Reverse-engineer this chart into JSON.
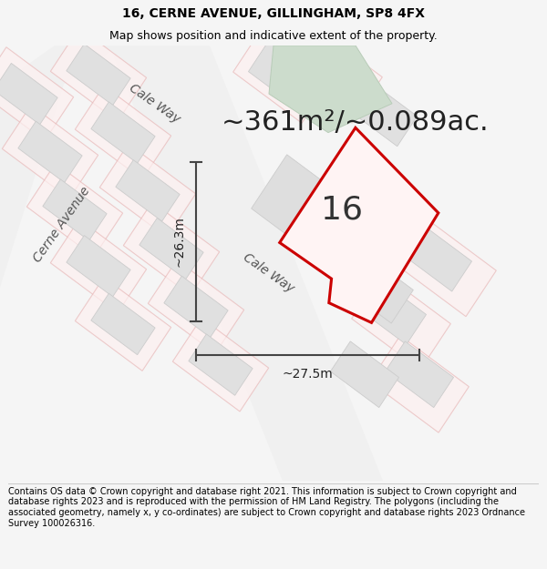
{
  "title_line1": "16, CERNE AVENUE, GILLINGHAM, SP8 4FX",
  "title_line2": "Map shows position and indicative extent of the property.",
  "area_text": "~361m²/~0.089ac.",
  "label_16": "16",
  "dim_vertical": "~26.3m",
  "dim_horizontal": "~27.5m",
  "street_cale_way_upper": "Cale Way",
  "street_cale_way_lower": "Cale Way",
  "street_cerne_avenue": "Cerne Avenue",
  "footer": "Contains OS data © Crown copyright and database right 2021. This information is subject to Crown copyright and database rights 2023 and is reproduced with the permission of HM Land Registry. The polygons (including the associated geometry, namely x, y co-ordinates) are subject to Crown copyright and database rights 2023 Ordnance Survey 100026316.",
  "bg_color": "#f5f5f5",
  "map_bg": "#ffffff",
  "road_color": "#f0f0f0",
  "building_fill": "#e0e0e0",
  "building_edge": "#cccccc",
  "parcel_fill": "#fdf0f0",
  "parcel_edge": "#e8b8b8",
  "green_fill": "#ccdccc",
  "green_edge": "#b8ccb8",
  "prop_fill": "#fff4f4",
  "prop_edge": "#cc0000",
  "dim_color": "#444444",
  "text_color": "#555555",
  "figsize": [
    6.0,
    6.25
  ],
  "dpi": 100,
  "title_fontsize": 10,
  "subtitle_fontsize": 9,
  "area_fontsize": 22,
  "label_fontsize": 26,
  "street_fontsize": 10,
  "dim_fontsize": 10,
  "footer_fontsize": 7
}
